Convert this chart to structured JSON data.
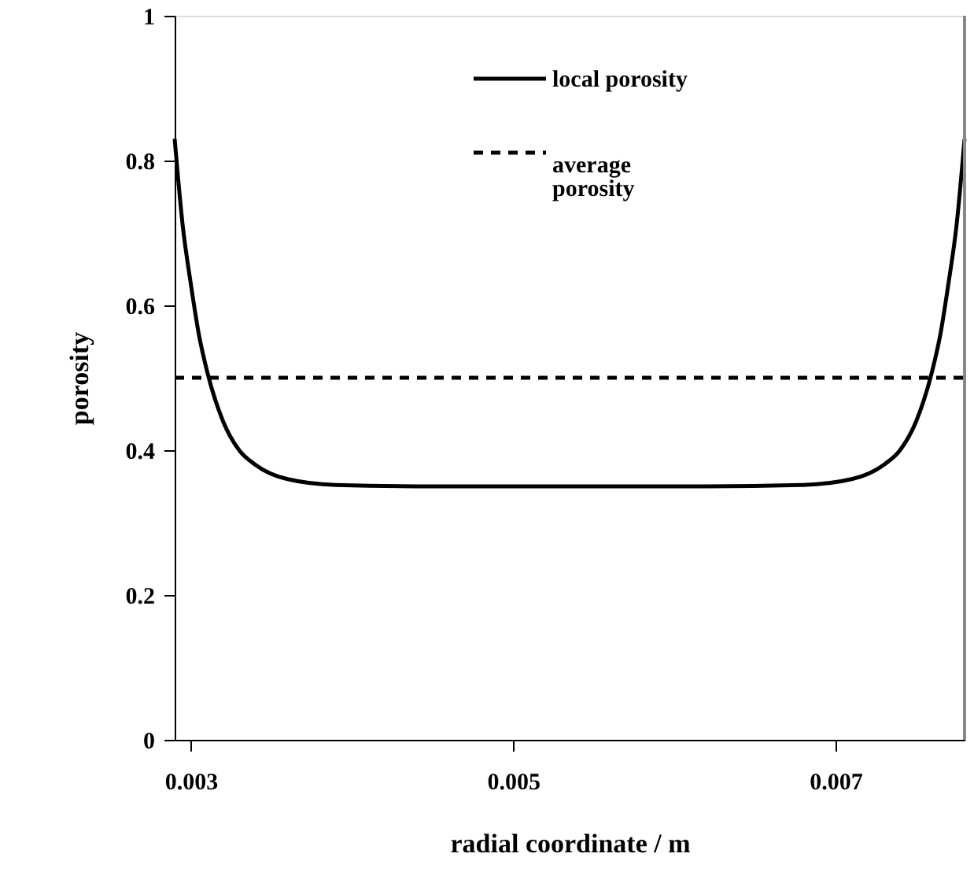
{
  "chart_data": {
    "type": "line",
    "xlabel": "radial coordinate / m",
    "ylabel": "porosity",
    "xlim": [
      0.0029,
      0.0078
    ],
    "xticks": [
      0.003,
      0.005,
      0.007
    ],
    "ylim": [
      0,
      1
    ],
    "yticks": [
      0,
      0.2,
      0.4,
      0.6,
      0.8,
      1
    ],
    "grid": false,
    "legend": "top",
    "marker": "none",
    "series": [
      {
        "name": "local porosity",
        "color": "#000000",
        "line_style": "solid",
        "x": [
          0.0029,
          0.00295,
          0.003,
          0.00305,
          0.0031,
          0.0032,
          0.0033,
          0.0034,
          0.0036,
          0.0039,
          0.0045,
          0.00535,
          0.0062,
          0.0068,
          0.0071,
          0.0073,
          0.0074,
          0.0075,
          0.0076,
          0.00765,
          0.0077,
          0.00775,
          0.0078
        ],
        "values": [
          0.83,
          0.71,
          0.63,
          0.56,
          0.51,
          0.44,
          0.4,
          0.38,
          0.36,
          0.352,
          0.35,
          0.35,
          0.35,
          0.352,
          0.36,
          0.38,
          0.4,
          0.44,
          0.51,
          0.56,
          0.63,
          0.71,
          0.83
        ]
      },
      {
        "name": "average porosity",
        "color": "#000000",
        "line_style": "dashed",
        "x": [
          0.0029,
          0.0078
        ],
        "values": [
          0.5,
          0.5
        ]
      }
    ]
  }
}
